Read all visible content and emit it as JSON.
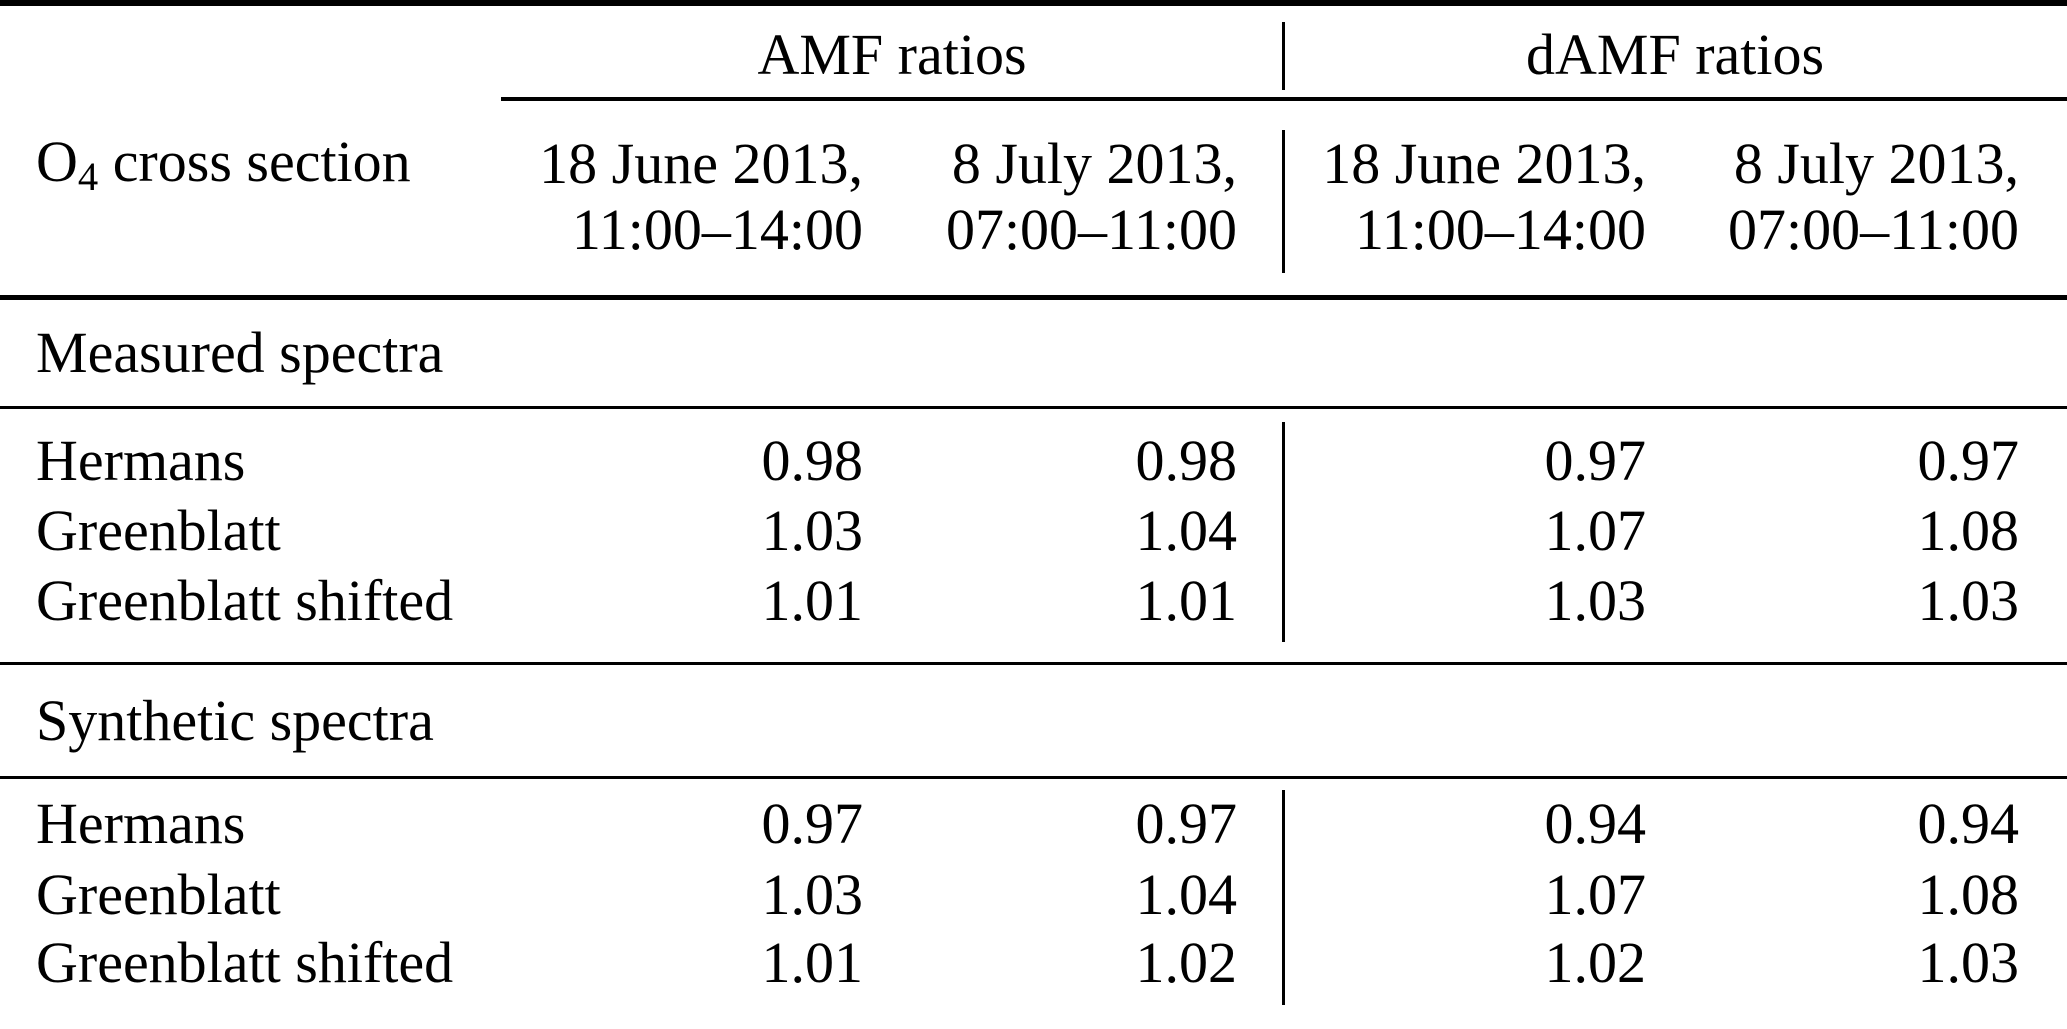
{
  "colors": {
    "text": "#000000",
    "background": "#ffffff",
    "rules": "#000000"
  },
  "table": {
    "row_label_header": {
      "prefix": "O",
      "subscript": "4",
      "rest": " cross section"
    },
    "column_groups": [
      {
        "label": "AMF ratios",
        "columns": [
          {
            "line1": "18 June 2013,",
            "line2": "11:00–14:00"
          },
          {
            "line1": "8 July 2013,",
            "line2": "07:00–11:00"
          }
        ]
      },
      {
        "label": "dAMF ratios",
        "columns": [
          {
            "line1": "18 June 2013,",
            "line2": "11:00–14:00"
          },
          {
            "line1": "8 July 2013,",
            "line2": "07:00–11:00"
          }
        ]
      }
    ],
    "sections": [
      {
        "title": "Measured spectra",
        "rows": [
          {
            "label": "Hermans",
            "values": [
              "0.98",
              "0.98",
              "0.97",
              "0.97"
            ]
          },
          {
            "label": "Greenblatt",
            "values": [
              "1.03",
              "1.04",
              "1.07",
              "1.08"
            ]
          },
          {
            "label": "Greenblatt shifted",
            "values": [
              "1.01",
              "1.01",
              "1.03",
              "1.03"
            ]
          }
        ]
      },
      {
        "title": "Synthetic spectra",
        "rows": [
          {
            "label": "Hermans",
            "values": [
              "0.97",
              "0.97",
              "0.94",
              "0.94"
            ]
          },
          {
            "label": "Greenblatt",
            "values": [
              "1.03",
              "1.04",
              "1.07",
              "1.08"
            ]
          },
          {
            "label": "Greenblatt shifted",
            "values": [
              "1.01",
              "1.02",
              "1.02",
              "1.03"
            ]
          }
        ]
      }
    ]
  }
}
